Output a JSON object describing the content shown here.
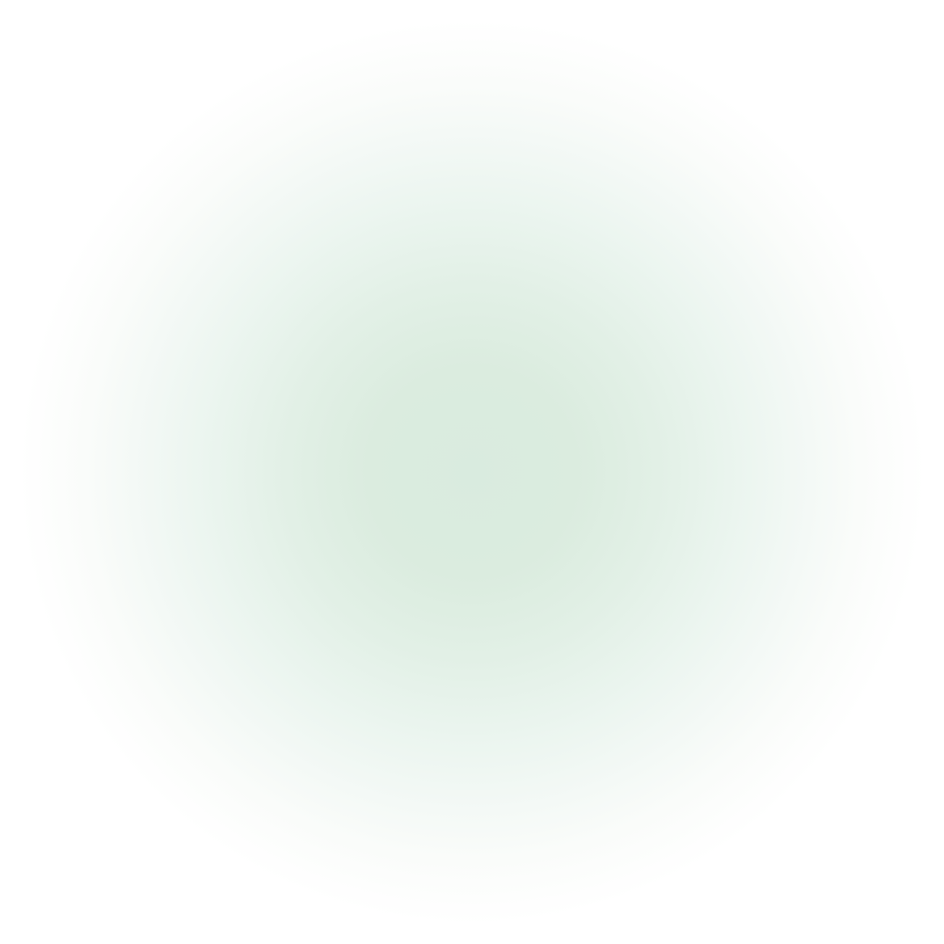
{
  "background": {
    "base_color": "#ffffff",
    "glow_center_color": "#d9ebdf",
    "glow_shape": "radial"
  }
}
